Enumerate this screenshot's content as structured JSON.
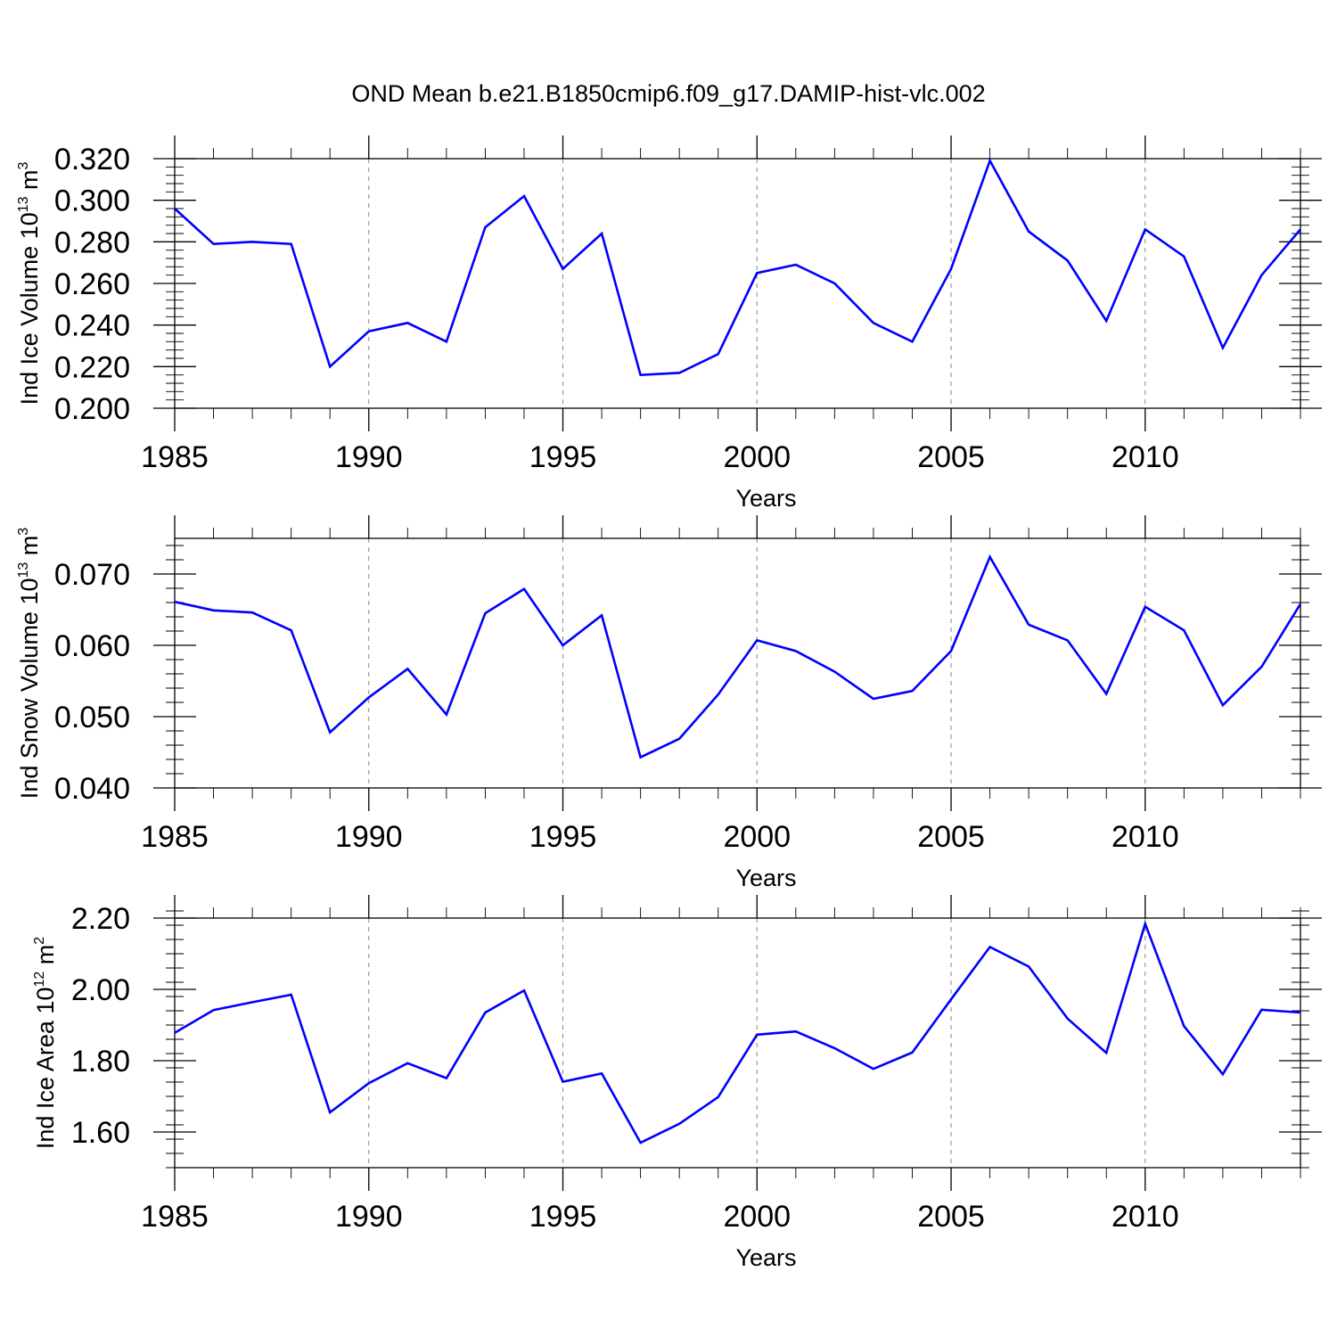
{
  "title": "OND Mean b.e21.B1850cmip6.f09_g17.DAMIP-hist-vlc.002",
  "colors": {
    "series": "#0000ff",
    "grid": "#888888"
  },
  "chart_data": [
    {
      "type": "line",
      "ylabel": {
        "main": "Ind Ice Volume 10",
        "exp": "13",
        "unit": " m",
        "unit_exp": "3"
      },
      "xlabel": "Years",
      "xlim": [
        1985,
        2014
      ],
      "xticks": [
        1985,
        1990,
        1995,
        2000,
        2005,
        2010
      ],
      "xtick_labels": [
        "1985",
        "1990",
        "1995",
        "2000",
        "2005",
        "2010"
      ],
      "ylim": [
        0.2,
        0.32
      ],
      "yticks": [
        0.2,
        0.22,
        0.24,
        0.26,
        0.28,
        0.3,
        0.32
      ],
      "ytick_labels": [
        "0.200",
        "0.220",
        "0.240",
        "0.260",
        "0.280",
        "0.300",
        "0.320"
      ],
      "grid": "vertical dashed",
      "x": [
        1985,
        1986,
        1987,
        1988,
        1989,
        1990,
        1991,
        1992,
        1993,
        1994,
        1995,
        1996,
        1997,
        1998,
        1999,
        2000,
        2001,
        2002,
        2003,
        2004,
        2005,
        2006,
        2007,
        2008,
        2009,
        2010,
        2011,
        2012,
        2013,
        2014
      ],
      "values": [
        0.296,
        0.279,
        0.28,
        0.279,
        0.22,
        0.237,
        0.241,
        0.232,
        0.287,
        0.302,
        0.267,
        0.284,
        0.216,
        0.217,
        0.226,
        0.265,
        0.269,
        0.26,
        0.241,
        0.232,
        0.267,
        0.319,
        0.285,
        0.271,
        0.242,
        0.286,
        0.273,
        0.229,
        0.264,
        0.286
      ]
    },
    {
      "type": "line",
      "ylabel": {
        "main": "Ind Snow Volume 10",
        "exp": "13",
        "unit": " m",
        "unit_exp": "3"
      },
      "xlabel": "Years",
      "xlim": [
        1985,
        2014
      ],
      "xticks": [
        1985,
        1990,
        1995,
        2000,
        2005,
        2010
      ],
      "xtick_labels": [
        "1985",
        "1990",
        "1995",
        "2000",
        "2005",
        "2010"
      ],
      "ylim": [
        0.04,
        0.075
      ],
      "yticks": [
        0.04,
        0.05,
        0.06,
        0.07
      ],
      "ytick_labels": [
        "0.040",
        "0.050",
        "0.060",
        "0.070"
      ],
      "grid": "vertical dashed",
      "x": [
        1985,
        1986,
        1987,
        1988,
        1989,
        1990,
        1991,
        1992,
        1993,
        1994,
        1995,
        1996,
        1997,
        1998,
        1999,
        2000,
        2001,
        2002,
        2003,
        2004,
        2005,
        2006,
        2007,
        2008,
        2009,
        2010,
        2011,
        2012,
        2013,
        2014
      ],
      "values": [
        0.0661,
        0.0649,
        0.0646,
        0.0621,
        0.0478,
        0.0527,
        0.0567,
        0.0503,
        0.0645,
        0.0679,
        0.06,
        0.0642,
        0.0443,
        0.0469,
        0.0531,
        0.0607,
        0.0592,
        0.0563,
        0.0525,
        0.0536,
        0.0592,
        0.0724,
        0.0629,
        0.0607,
        0.0532,
        0.0654,
        0.0621,
        0.0516,
        0.057,
        0.0658
      ]
    },
    {
      "type": "line",
      "ylabel": {
        "main": "Ind Ice Area 10",
        "exp": "12",
        "unit": " m",
        "unit_exp": "2"
      },
      "xlabel": "Years",
      "xlim": [
        1985,
        2014
      ],
      "xticks": [
        1985,
        1990,
        1995,
        2000,
        2005,
        2010
      ],
      "xtick_labels": [
        "1985",
        "1990",
        "1995",
        "2000",
        "2005",
        "2010"
      ],
      "ylim": [
        1.5,
        2.2
      ],
      "yticks": [
        1.6,
        1.8,
        2.0,
        2.2
      ],
      "ytick_labels": [
        "1.60",
        "1.80",
        "2.00",
        "2.20"
      ],
      "grid": "vertical dashed",
      "x": [
        1985,
        1986,
        1987,
        1988,
        1989,
        1990,
        1991,
        1992,
        1993,
        1994,
        1995,
        1996,
        1997,
        1998,
        1999,
        2000,
        2001,
        2002,
        2003,
        2004,
        2005,
        2006,
        2007,
        2008,
        2009,
        2010,
        2011,
        2012,
        2013,
        2014
      ],
      "values": [
        1.878,
        1.942,
        1.964,
        1.985,
        1.655,
        1.737,
        1.793,
        1.751,
        1.935,
        1.997,
        1.741,
        1.764,
        1.57,
        1.623,
        1.698,
        1.873,
        1.882,
        1.835,
        1.777,
        1.823,
        1.972,
        2.119,
        2.064,
        1.918,
        1.822,
        2.184,
        1.897,
        1.762,
        1.943,
        1.935
      ]
    }
  ]
}
